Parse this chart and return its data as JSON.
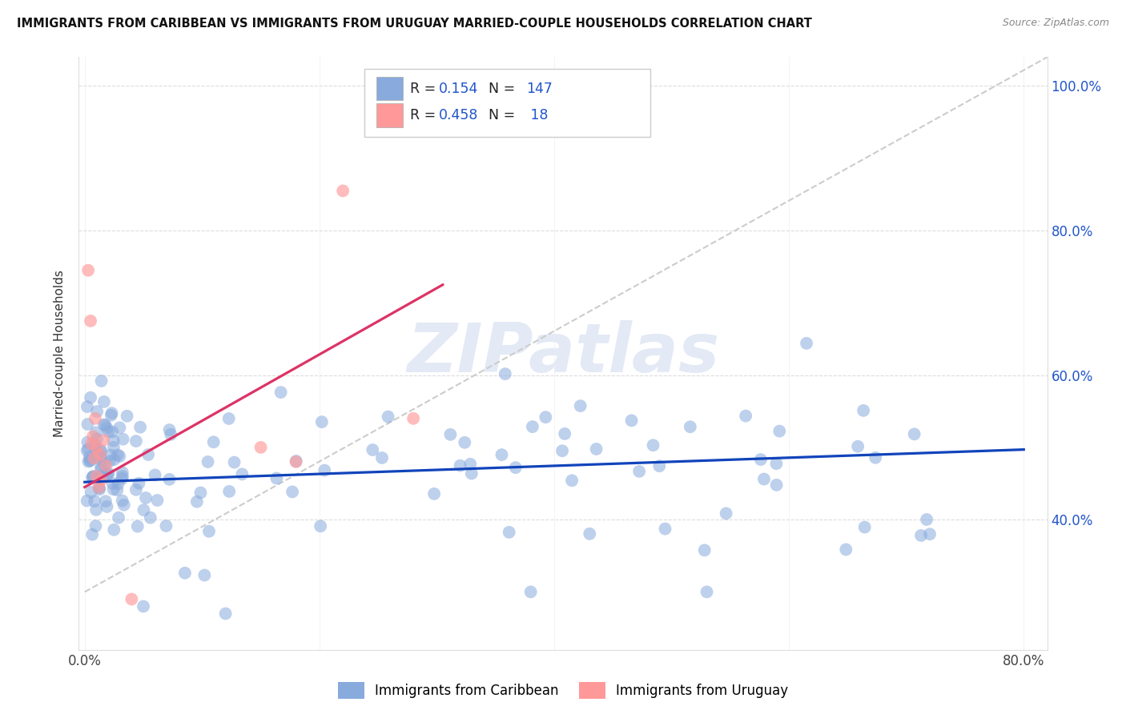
{
  "title": "IMMIGRANTS FROM CARIBBEAN VS IMMIGRANTS FROM URUGUAY MARRIED-COUPLE HOUSEHOLDS CORRELATION CHART",
  "source": "Source: ZipAtlas.com",
  "ylabel": "Married-couple Households",
  "xlim": [
    -0.005,
    0.82
  ],
  "ylim": [
    0.22,
    1.04
  ],
  "yticks": [
    0.4,
    0.6,
    0.8,
    1.0
  ],
  "xticks": [
    0.0,
    0.2,
    0.4,
    0.6,
    0.8
  ],
  "blue_color": "#88AADD",
  "pink_color": "#FF9999",
  "line_blue": "#1144BB",
  "line_pink": "#DD3366",
  "line_gray": "#CCCCCC",
  "watermark": "ZIPatlas",
  "legend_label1": "Immigrants from Caribbean",
  "legend_label2": "Immigrants from Uruguay",
  "blue_trend": [
    0.0,
    0.8,
    0.452,
    0.497
  ],
  "pink_trend": [
    0.0,
    0.305,
    0.445,
    0.725
  ],
  "diagonal": [
    0.0,
    0.82,
    0.3,
    1.04
  ]
}
